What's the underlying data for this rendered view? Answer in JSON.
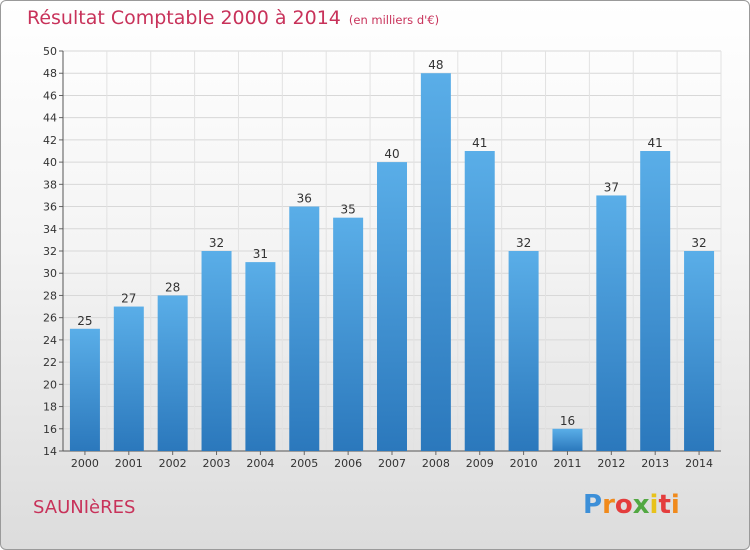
{
  "chart_data": {
    "type": "bar",
    "title": "Résultat Comptable 2000 à 2014",
    "subtitle": "(en milliers d'€)",
    "categories": [
      "2000",
      "2001",
      "2002",
      "2003",
      "2004",
      "2005",
      "2006",
      "2007",
      "2008",
      "2009",
      "2010",
      "2011",
      "2012",
      "2013",
      "2014"
    ],
    "values": [
      25,
      27,
      28,
      32,
      31,
      36,
      35,
      40,
      48,
      41,
      32,
      16,
      37,
      41,
      32
    ],
    "ylim": [
      14,
      50
    ],
    "yticks": [
      14,
      16,
      18,
      20,
      22,
      24,
      26,
      28,
      30,
      32,
      34,
      36,
      38,
      40,
      42,
      44,
      46,
      48,
      50
    ],
    "grid": true,
    "xlabel": "",
    "ylabel": ""
  },
  "commune": "SAUNIèRES",
  "logo": {
    "text": "Proxiti",
    "letters": [
      "P",
      "r",
      "o",
      "x",
      "i",
      "t",
      "i"
    ]
  },
  "colors": {
    "bar_light": "#5aaee8",
    "bar_dark": "#2b78bc",
    "title": "#c8325a"
  }
}
